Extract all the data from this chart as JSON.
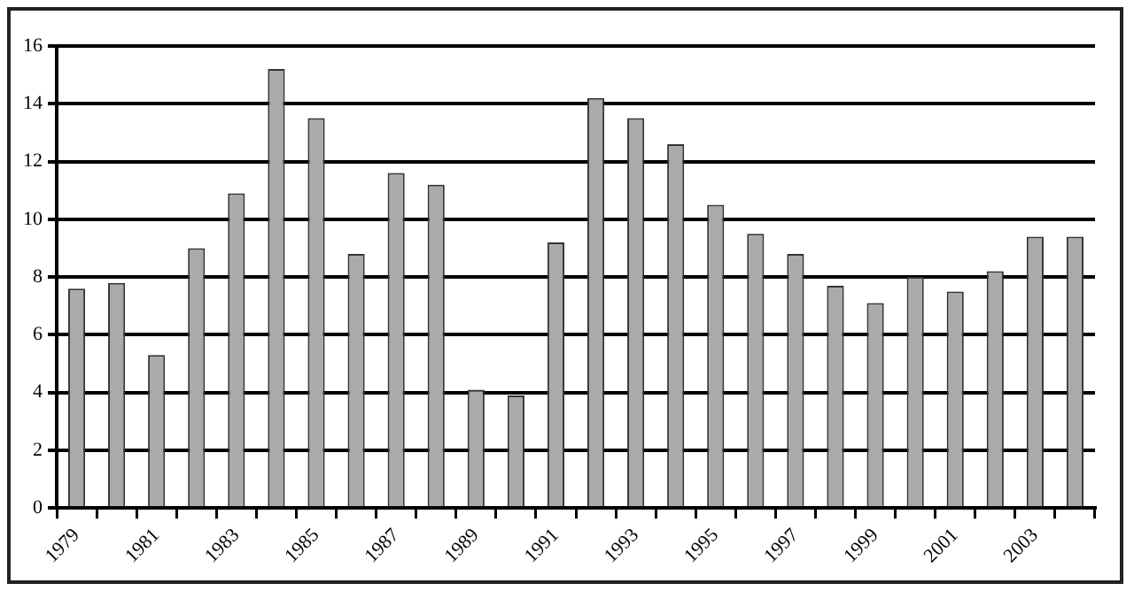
{
  "chart_data": {
    "type": "bar",
    "categories": [
      "1979",
      null,
      "1981",
      null,
      "1983",
      null,
      "1985",
      null,
      "1987",
      null,
      "1989",
      null,
      "1991",
      null,
      "1993",
      null,
      "1995",
      null,
      "1997",
      null,
      "1999",
      null,
      "2001",
      null,
      "2003",
      null
    ],
    "values": [
      7.6,
      7.8,
      5.3,
      9.0,
      10.9,
      15.2,
      13.5,
      8.8,
      11.6,
      11.2,
      4.1,
      3.9,
      9.2,
      14.2,
      13.5,
      12.6,
      10.5,
      9.5,
      8.8,
      7.7,
      7.1,
      8.0,
      7.5,
      8.2,
      9.4,
      9.4
    ],
    "color": "#aaaaaa",
    "ylim": [
      0,
      16
    ],
    "yticks": [
      0,
      2,
      4,
      6,
      8,
      10,
      12,
      14,
      16
    ],
    "grid": "y",
    "legend": false
  }
}
